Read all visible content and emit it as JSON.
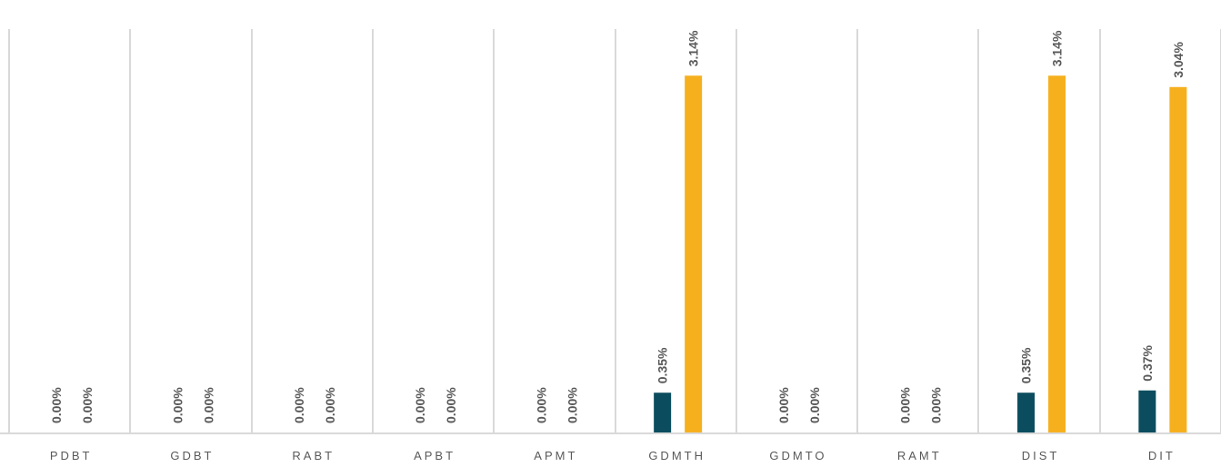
{
  "chart_data": {
    "type": "bar",
    "title": "",
    "xlabel": "",
    "ylabel": "",
    "categories": [
      "PDBT",
      "GDBT",
      "RABT",
      "APBT",
      "APMT",
      "GDMTH",
      "GDMTO",
      "RAMT",
      "DIST",
      "DIT"
    ],
    "series": [
      {
        "color": "#0b4d5f",
        "values": [
          0.0,
          0.0,
          0.0,
          0.0,
          0.0,
          0.35,
          0.0,
          0.0,
          0.35,
          0.37
        ]
      },
      {
        "color": "#f6b01e",
        "values": [
          0.0,
          0.0,
          0.0,
          0.0,
          0.0,
          3.14,
          0.0,
          0.0,
          3.14,
          3.04
        ]
      }
    ],
    "data_labels": [
      [
        "0.00%",
        "0.00%",
        "0.00%",
        "0.00%",
        "0.00%",
        "0.35%",
        "0.00%",
        "0.00%",
        "0.35%",
        "0.37%"
      ],
      [
        "0.00%",
        "0.00%",
        "0.00%",
        "0.00%",
        "0.00%",
        "3.14%",
        "0.00%",
        "0.00%",
        "3.14%",
        "3.04%"
      ]
    ],
    "ylim": [
      0,
      3.55
    ],
    "grid": "vertical separators between categories",
    "legend": "none",
    "colors": {
      "gridline": "#d9d9d9",
      "text": "#595959"
    }
  }
}
